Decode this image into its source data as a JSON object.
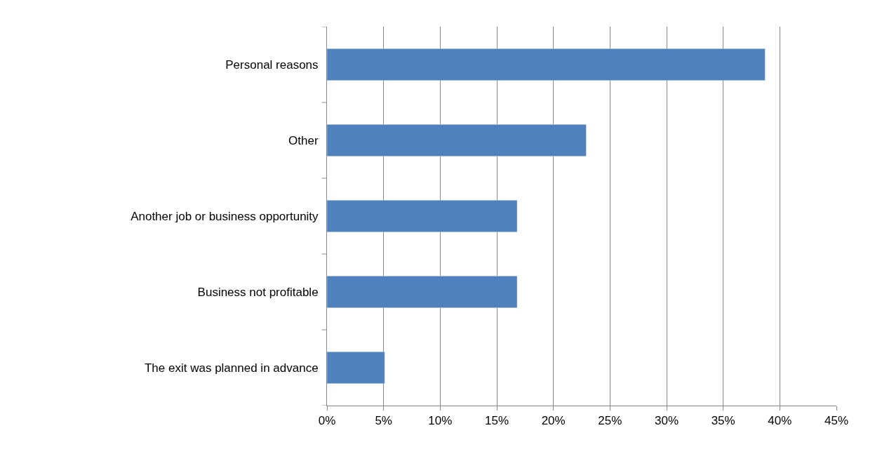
{
  "chart_data": {
    "type": "bar",
    "orientation": "horizontal",
    "categories": [
      "Personal reasons",
      "Other",
      "Another job or business opportunity",
      "Business not profitable",
      "The exit was planned in advance"
    ],
    "values": [
      38.7,
      22.9,
      16.8,
      16.8,
      5.1
    ],
    "color": "#4f81bd",
    "xlim": [
      0,
      45
    ],
    "xticks": [
      {
        "value": 0,
        "label": "0%"
      },
      {
        "value": 5,
        "label": "5%"
      },
      {
        "value": 10,
        "label": "10%"
      },
      {
        "value": 15,
        "label": "15%"
      },
      {
        "value": 20,
        "label": "20%"
      },
      {
        "value": 25,
        "label": "25%"
      },
      {
        "value": 30,
        "label": "30%"
      },
      {
        "value": 35,
        "label": "35%"
      },
      {
        "value": 40,
        "label": "40%"
      },
      {
        "value": 45,
        "label": "45%"
      }
    ],
    "grid": "x"
  }
}
